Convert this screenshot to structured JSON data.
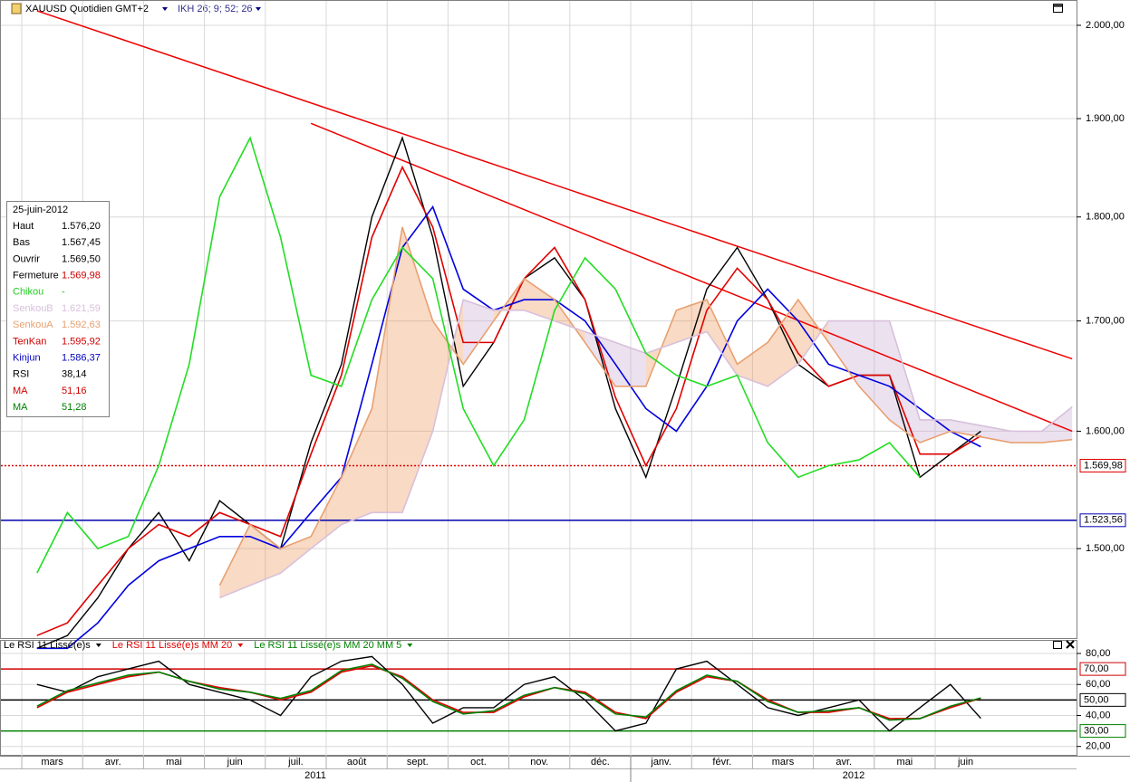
{
  "header": {
    "symbol": "XAUUSD Quotidien GMT+2",
    "indicator": "IKH 26; 9; 52; 26"
  },
  "info_panel": {
    "date": "25-juin-2012",
    "rows": [
      {
        "label": "Haut",
        "value": "1.576,20",
        "color": "#000000"
      },
      {
        "label": "Bas",
        "value": "1.567,45",
        "color": "#000000"
      },
      {
        "label": "Ouvrir",
        "value": "1.569,50",
        "color": "#000000"
      },
      {
        "label": "Fermeture",
        "value": "1.569,98",
        "color": "#000000",
        "value_color": "#d00000"
      },
      {
        "label": "Chikou",
        "value": "-",
        "color": "#22cc22"
      },
      {
        "label": "SenkouB",
        "value": "1.621,59",
        "color": "#d8c0dc"
      },
      {
        "label": "SenkouA",
        "value": "1.592,63",
        "color": "#e8a070"
      },
      {
        "label": "TenKan",
        "value": "1.595,92",
        "color": "#d00000"
      },
      {
        "label": "Kinjun",
        "value": "1.586,37",
        "color": "#0000c0"
      },
      {
        "label": "RSI",
        "value": "38,14",
        "color": "#000000"
      },
      {
        "label": "MA",
        "value": "51,16",
        "color": "#d00000"
      },
      {
        "label": "MA",
        "value": "51,28",
        "color": "#008000"
      }
    ]
  },
  "chart_data": [
    {
      "type": "line",
      "log": true,
      "grid": true,
      "categories": [
        "mars",
        null,
        "avr.",
        null,
        "mai",
        null,
        "juin",
        null,
        "juil.",
        null,
        "août",
        null,
        "sept.",
        null,
        "oct.",
        null,
        "nov.",
        null,
        "déc.",
        null,
        "janv.",
        null,
        "févr.",
        null,
        "mars",
        null,
        "avr.",
        null,
        "mai",
        null,
        "juin",
        null,
        null,
        null,
        null
      ],
      "years": [
        "2011",
        null,
        null,
        null,
        null,
        null,
        null,
        null,
        null,
        null,
        null,
        null,
        null,
        null,
        null,
        null,
        null,
        null,
        null,
        null,
        "2012",
        null,
        null,
        null,
        null,
        null,
        null,
        null,
        null,
        null,
        null,
        null,
        null,
        null,
        null
      ],
      "ylim": [
        1428,
        2025
      ],
      "yticks": [
        {
          "value": 1500,
          "label": "1.500,00"
        },
        {
          "value": 1600,
          "label": "1.600,00"
        },
        {
          "value": 1700,
          "label": "1.700,00"
        },
        {
          "value": 1800,
          "label": "1.800,00"
        },
        {
          "value": 1900,
          "label": "1.900,00"
        },
        {
          "value": 2000,
          "label": "2.000,00"
        }
      ],
      "cloud": {
        "a": 3,
        "b": 4,
        "up_color": "rgba(235,150,90,0.35)",
        "down_color": "rgba(200,170,210,0.35)"
      },
      "series": [
        {
          "color": "#000000",
          "values": [
            1420,
            1430,
            1460,
            1500,
            1530,
            1490,
            1540,
            1520,
            1500,
            1590,
            1660,
            1800,
            1880,
            1780,
            1640,
            1680,
            1740,
            1760,
            1720,
            1620,
            1560,
            1640,
            1730,
            1770,
            1720,
            1660,
            1640,
            1650,
            1650,
            1560,
            1580,
            1600,
            null,
            null,
            null
          ]
        },
        {
          "color": "#e00000",
          "values": [
            1430,
            1440,
            1470,
            1500,
            1520,
            1510,
            1530,
            1520,
            1510,
            1580,
            1650,
            1780,
            1850,
            1790,
            1680,
            1680,
            1740,
            1770,
            1720,
            1630,
            1570,
            1620,
            1710,
            1750,
            1720,
            1670,
            1640,
            1650,
            1650,
            1580,
            1580,
            1595.92,
            null,
            null,
            null
          ]
        },
        {
          "color": "#0000e0",
          "values": [
            1420,
            1420,
            1440,
            1470,
            1490,
            1500,
            1510,
            1510,
            1500,
            1530,
            1560,
            1660,
            1770,
            1810,
            1730,
            1710,
            1720,
            1720,
            1700,
            1660,
            1620,
            1600,
            1640,
            1700,
            1730,
            1700,
            1660,
            1650,
            1640,
            1620,
            1600,
            1586.37,
            null,
            null,
            null
          ]
        },
        {
          "color": "#e8a070",
          "values": [
            null,
            null,
            null,
            null,
            null,
            null,
            1470,
            1520,
            1500,
            1510,
            1560,
            1620,
            1790,
            1700,
            1660,
            1700,
            1740,
            1720,
            1680,
            1640,
            1640,
            1710,
            1720,
            1660,
            1680,
            1720,
            1680,
            1640,
            1610,
            1590,
            1600,
            1595,
            1590,
            1590,
            1592.63
          ]
        },
        {
          "color": "#d8c0dc",
          "values": [
            null,
            null,
            null,
            null,
            null,
            null,
            1460,
            1470,
            1480,
            1500,
            1520,
            1530,
            1530,
            1600,
            1720,
            1710,
            1710,
            1700,
            1690,
            1680,
            1670,
            1680,
            1690,
            1650,
            1640,
            1660,
            1700,
            1700,
            1700,
            1610,
            1610,
            1605,
            1600,
            1600,
            1621.59
          ]
        },
        {
          "color": "#22dd22",
          "values": [
            1480,
            1530,
            1500,
            1510,
            1570,
            1660,
            1820,
            1880,
            1780,
            1650,
            1640,
            1720,
            1770,
            1740,
            1620,
            1570,
            1610,
            1710,
            1760,
            1730,
            1670,
            1650,
            1640,
            1650,
            1590,
            1560,
            1570,
            1575,
            1590,
            1560,
            null,
            null,
            null,
            null,
            null
          ]
        }
      ],
      "trendlines": [
        {
          "color": "#ee0000",
          "values": [
            2016,
            null,
            null,
            null,
            null,
            null,
            null,
            null,
            null,
            null,
            null,
            null,
            null,
            null,
            null,
            null,
            null,
            null,
            null,
            null,
            null,
            null,
            null,
            null,
            null,
            null,
            null,
            null,
            null,
            null,
            null,
            null,
            null,
            null,
            1665
          ]
        },
        {
          "color": "#ee0000",
          "values": [
            null,
            null,
            null,
            null,
            null,
            null,
            null,
            null,
            null,
            1895,
            null,
            null,
            null,
            null,
            null,
            null,
            null,
            null,
            null,
            null,
            null,
            null,
            null,
            null,
            null,
            null,
            null,
            null,
            null,
            null,
            null,
            null,
            null,
            null,
            1600
          ]
        }
      ],
      "levels": [
        {
          "value": 1569.98,
          "label": "1.569,98",
          "color": "#e00000",
          "style": "dotted"
        },
        {
          "value": 1523.56,
          "label": "1.523,56",
          "color": "#0000b0",
          "style": "solid"
        }
      ]
    },
    {
      "type": "line",
      "grid": true,
      "ylim": [
        14,
        87
      ],
      "yticks": [
        {
          "value": 20,
          "label": "20,00"
        },
        {
          "value": 40,
          "label": "40,00"
        },
        {
          "value": 60,
          "label": "60,00"
        },
        {
          "value": 80,
          "label": "80,00"
        }
      ],
      "levels": [
        {
          "value": 70,
          "label": "70,00",
          "color": "#d00000"
        },
        {
          "value": 50,
          "label": "50,00",
          "color": "#000000"
        },
        {
          "value": 30,
          "label": "30,00",
          "color": "#008000"
        }
      ],
      "series": [
        {
          "name": "Le RSI 11 Lissé(e)s",
          "color": "#000000",
          "values": [
            60,
            55,
            65,
            70,
            75,
            60,
            55,
            50,
            40,
            65,
            75,
            78,
            60,
            35,
            45,
            45,
            60,
            65,
            50,
            30,
            35,
            70,
            75,
            60,
            45,
            40,
            45,
            50,
            30,
            45,
            60,
            38.14,
            null,
            null,
            null
          ]
        },
        {
          "name": "Le RSI 11 Lissé(e)s MM 20",
          "color": "#e00000",
          "values": [
            45,
            55,
            60,
            65,
            68,
            62,
            58,
            55,
            50,
            55,
            68,
            72,
            65,
            50,
            42,
            42,
            52,
            58,
            55,
            42,
            38,
            55,
            65,
            62,
            50,
            42,
            42,
            45,
            38,
            38,
            45,
            51.16,
            null,
            null,
            null
          ]
        },
        {
          "name": "Le RSI 11 Lissé(e)s MM 20 MM 5",
          "color": "#008000",
          "values": [
            46,
            56,
            61,
            66,
            68,
            62,
            57,
            55,
            51,
            56,
            69,
            73,
            64,
            49,
            41,
            43,
            53,
            58,
            54,
            41,
            39,
            56,
            66,
            62,
            49,
            42,
            43,
            45,
            37,
            38,
            46,
            51.28,
            null,
            null,
            null
          ]
        }
      ]
    }
  ]
}
